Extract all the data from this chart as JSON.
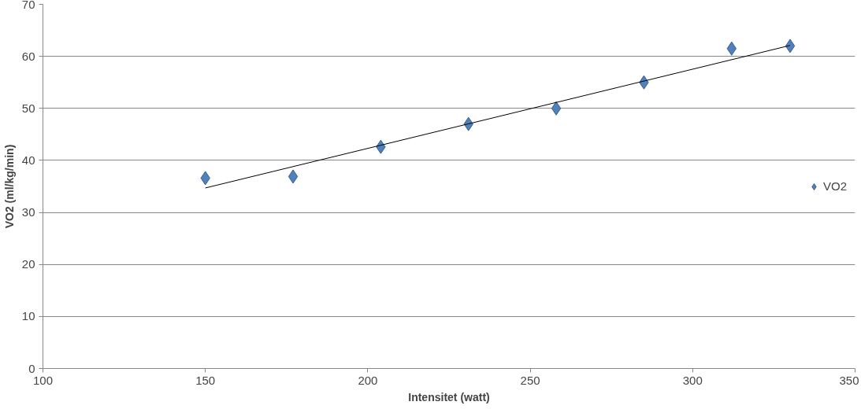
{
  "chart_data": {
    "type": "scatter",
    "xlabel": "Intensitet (watt)",
    "ylabel": "VO2 (ml/kg/min)",
    "xlim": [
      100,
      350
    ],
    "xticks": [
      100,
      150,
      200,
      250,
      300,
      350
    ],
    "ylim": [
      0,
      70
    ],
    "yticks": [
      0,
      10,
      20,
      30,
      40,
      50,
      60,
      70
    ],
    "grid": "y",
    "legend": "right",
    "series": [
      {
        "name": "VO2",
        "color": "#4f81bd",
        "marker": "diamond",
        "x": [
          150,
          177,
          204,
          231,
          258,
          285,
          312,
          330
        ],
        "values": [
          36.6,
          36.9,
          42.6,
          47.0,
          50.0,
          55.0,
          61.5,
          62.0
        ]
      },
      {
        "type": "line",
        "color": "#000000",
        "x": [
          150,
          330
        ],
        "values": [
          34.7,
          62.1
        ],
        "line_style": "solid",
        "marker": "none"
      }
    ]
  }
}
